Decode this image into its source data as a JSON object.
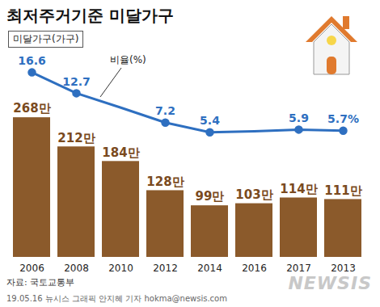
{
  "chart_data": {
    "type": "bar",
    "title": "최저주거기준 미달가구",
    "categories": [
      "2006",
      "2008",
      "2010",
      "2012",
      "2014",
      "2016",
      "2017",
      "2013"
    ],
    "series": [
      {
        "name": "미달가구(가구)",
        "type": "bar",
        "color": "#8b5a2b",
        "values": [
          268,
          212,
          184,
          128,
          99,
          103,
          114,
          111
        ],
        "value_labels": [
          "268만",
          "212만",
          "184만",
          "128만",
          "99만",
          "103만",
          "114만",
          "111만"
        ]
      },
      {
        "name": "비율(%)",
        "type": "line",
        "axis": "y2",
        "color": "#2e6fc0",
        "marker": "circle",
        "values": [
          16.6,
          12.7,
          10.0,
          7.2,
          5.4,
          5.6,
          5.9,
          5.7
        ],
        "value_labels": [
          "16.6",
          "12.7",
          null,
          "7.2",
          "5.4",
          null,
          "5.9",
          "5.7%"
        ]
      }
    ],
    "ylim": [
      0,
      400
    ],
    "yticks": [],
    "y2lim": [
      -18,
      21
    ],
    "y2ticks": [],
    "data_labels": true,
    "tick_labels": "x",
    "source": "자료: 국토교통부",
    "credit": "19.05.16 뉴시스 그래픽 안지혜 기자 hokma@newsis.com",
    "watermark": "NEWSIS"
  }
}
